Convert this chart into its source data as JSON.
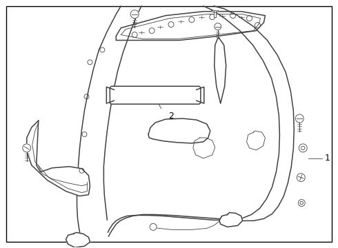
{
  "background_color": "#ffffff",
  "border_color": "#000000",
  "line_color": "#404040",
  "label_color": "#000000",
  "figure_width": 4.9,
  "figure_height": 3.6,
  "dpi": 100,
  "border_lw": 1.0,
  "part_lw": 1.1,
  "thin_lw": 0.6,
  "label_fontsize": 9
}
